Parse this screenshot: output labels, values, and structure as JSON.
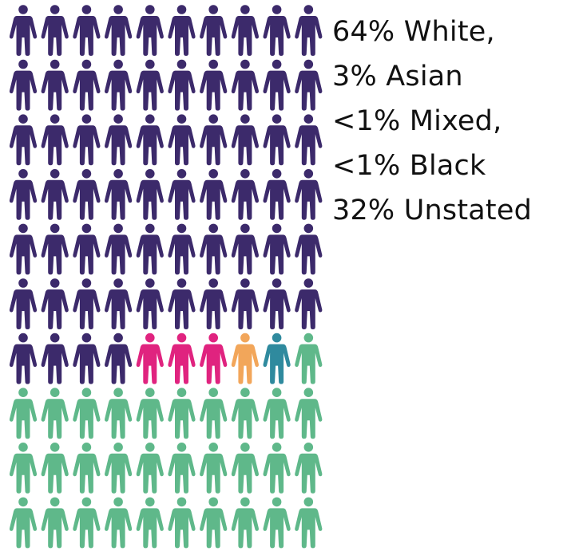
{
  "chart_data": {
    "type": "pictogram",
    "total_icons": 100,
    "columns": 10,
    "rows": 10,
    "series": [
      {
        "name": "White",
        "percent": 64,
        "icons": 64,
        "color": "#3c2a6b"
      },
      {
        "name": "Asian",
        "percent": 3,
        "icons": 3,
        "color": "#e0237f"
      },
      {
        "name": "Mixed",
        "percent": "<1",
        "icons": 1,
        "color": "#f2a65a"
      },
      {
        "name": "Black",
        "percent": "<1",
        "icons": 1,
        "color": "#2f8a9e"
      },
      {
        "name": "Unstated",
        "percent": 32,
        "icons": 31,
        "color": "#5fb88a"
      }
    ],
    "legend_lines": [
      "64% White,",
      "3% Asian",
      "<1% Mixed,",
      "<1% Black",
      "32% Unstated"
    ],
    "legend_position": "top-right"
  }
}
